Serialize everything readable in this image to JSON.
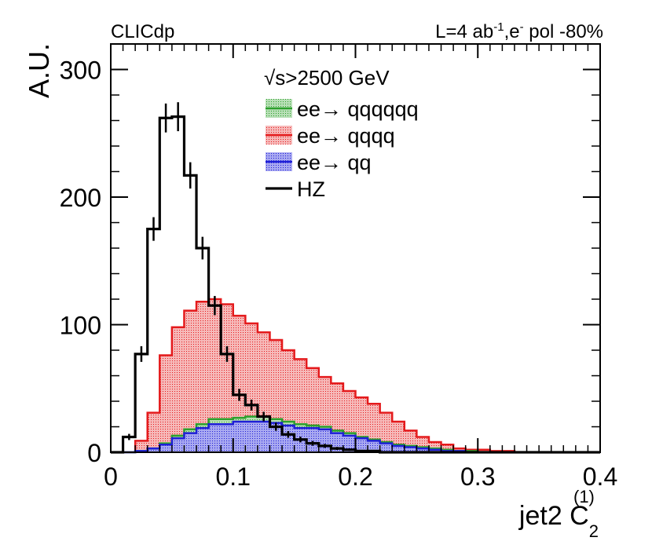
{
  "chart_data": {
    "type": "histogram",
    "header_left": "CLICdp",
    "header_right": {
      "lumi": "L=4 ab",
      "lumi_sup": "-1",
      "beam": ",e",
      "beam_sup": "-",
      "pol": " pol -80%"
    },
    "ylabel": "A.U.",
    "xlabel": {
      "main": "jet2 C",
      "sub": "2",
      "sup": "(1)"
    },
    "xlim": [
      0,
      0.4
    ],
    "ylim": [
      0,
      320
    ],
    "x_ticks": [
      0,
      0.1,
      0.2,
      0.3,
      0.4
    ],
    "x_tick_labels": [
      "0",
      "0.1",
      "0.2",
      "0.3",
      "0.4"
    ],
    "y_ticks": [
      0,
      100,
      200,
      300
    ],
    "y_tick_labels": [
      "0",
      "100",
      "200",
      "300"
    ],
    "bin_width": 0.01,
    "legend": {
      "title": "√s>2500 GeV",
      "entries": [
        "ee→ qqqqqq",
        "ee→ qqqq",
        "ee→ qq",
        "HZ"
      ]
    },
    "colors": {
      "qqqqqq": "#2ca02c",
      "qqqq": "#e41a1c",
      "qq": "#1f1fd6",
      "hz": "#000000"
    },
    "series": [
      {
        "name": "ee→ qq",
        "stacked_total": [
          0,
          0,
          1,
          3,
          6,
          11,
          15,
          19,
          22,
          22,
          24,
          24,
          24,
          23,
          21,
          19,
          19,
          18,
          15,
          13,
          11,
          9,
          7,
          5,
          4,
          3,
          2,
          1,
          1,
          0,
          0,
          0,
          0,
          0,
          0,
          0,
          0,
          0,
          0,
          0
        ]
      },
      {
        "name": "ee→ qqqqqq",
        "stacked_total": [
          0,
          0,
          1,
          3,
          7,
          13,
          18,
          22,
          26,
          26,
          27,
          28,
          28,
          26,
          24,
          22,
          21,
          20,
          17,
          15,
          12,
          10,
          8,
          6,
          5,
          4,
          3,
          2,
          1,
          1,
          0,
          0,
          0,
          0,
          0,
          0,
          0,
          0,
          0,
          0
        ]
      },
      {
        "name": "ee→ qqqq",
        "stacked_total": [
          0,
          0,
          9,
          31,
          76,
          98,
          111,
          118,
          120,
          116,
          107,
          101,
          94,
          88,
          80,
          73,
          66,
          59,
          54,
          48,
          43,
          38,
          31,
          24,
          17,
          12,
          8,
          6,
          3,
          2,
          2,
          1,
          1,
          0,
          0,
          0,
          0,
          0,
          0,
          0
        ]
      },
      {
        "name": "HZ",
        "values": [
          0,
          12,
          77,
          175,
          262,
          263,
          217,
          160,
          115,
          77,
          45,
          37,
          28,
          20,
          14,
          10,
          7,
          5,
          3,
          2,
          1,
          1,
          0,
          0,
          0,
          0,
          0,
          0,
          0,
          0,
          0,
          0,
          0,
          0,
          0,
          0,
          0,
          0,
          0,
          0
        ]
      }
    ]
  }
}
